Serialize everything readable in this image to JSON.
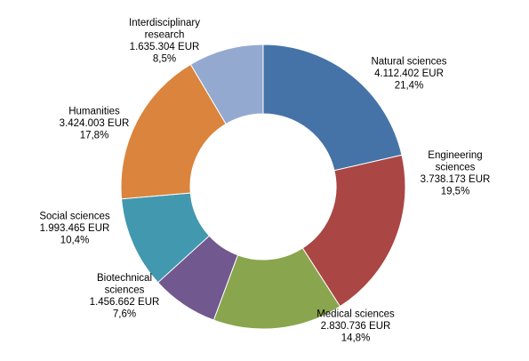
{
  "chart_data": {
    "type": "pie",
    "variant": "donut",
    "title": "",
    "legend": "none",
    "currency": "EUR",
    "slices": [
      {
        "name_lines": [
          "Natural sciences"
        ],
        "amount": "4.112.402 EUR",
        "percent_label": "21,4%",
        "value": 4112402,
        "percent": 21.4,
        "color": "#4573A7"
      },
      {
        "name_lines": [
          "Engineering",
          "sciences"
        ],
        "amount": "3.738.173 EUR",
        "percent_label": "19,5%",
        "value": 3738173,
        "percent": 19.5,
        "color": "#AA4644"
      },
      {
        "name_lines": [
          "Medical sciences"
        ],
        "amount": "2.830.736 EUR",
        "percent_label": "14,8%",
        "value": 2830736,
        "percent": 14.8,
        "color": "#89A54E"
      },
      {
        "name_lines": [
          "Biotechnical",
          "sciences"
        ],
        "amount": "1.456.662 EUR",
        "percent_label": "7,6%",
        "value": 1456662,
        "percent": 7.6,
        "color": "#71588F"
      },
      {
        "name_lines": [
          "Social sciences"
        ],
        "amount": "1.993.465 EUR",
        "percent_label": "10,4%",
        "value": 1993465,
        "percent": 10.4,
        "color": "#4298AF"
      },
      {
        "name_lines": [
          "Humanities"
        ],
        "amount": "3.424.003 EUR",
        "percent_label": "17,8%",
        "value": 3424003,
        "percent": 17.8,
        "color": "#DB843D"
      },
      {
        "name_lines": [
          "Interdisciplinary",
          "research"
        ],
        "amount": "1.635.304 EUR",
        "percent_label": "8,5%",
        "value": 1635304,
        "percent": 8.5,
        "color": "#93A9D0"
      }
    ]
  }
}
